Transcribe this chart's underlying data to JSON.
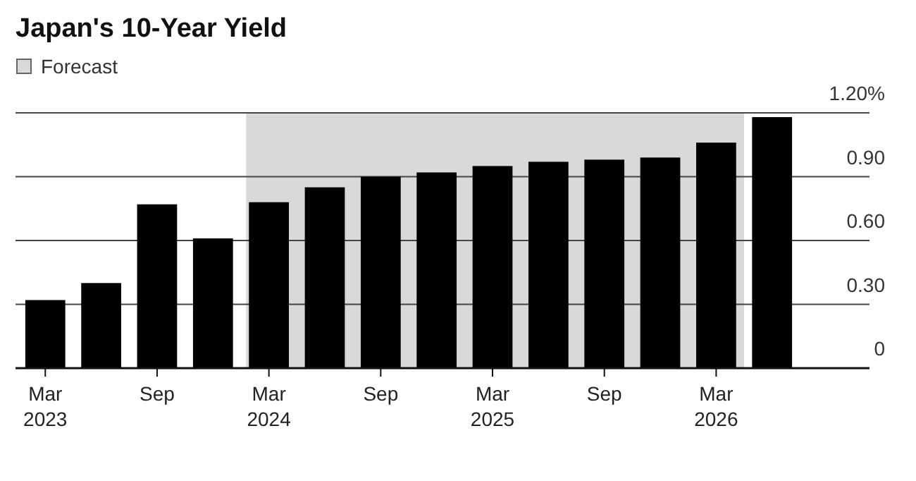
{
  "chart_data": {
    "type": "bar",
    "title": "Japan's 10-Year Yield",
    "categories": [
      "Mar\n2023",
      null,
      "Sep",
      null,
      "Mar\n2024",
      null,
      "Sep",
      null,
      "Mar\n2025",
      null,
      "Sep",
      null,
      "Mar\n2026",
      null
    ],
    "values": [
      0.32,
      0.4,
      0.77,
      0.61,
      0.78,
      0.85,
      0.9,
      0.92,
      0.95,
      0.97,
      0.98,
      0.99,
      1.06,
      1.18
    ],
    "color": "#000000",
    "ylim": [
      0,
      1.2
    ],
    "yticks": [
      0,
      {
        "value": 0.3,
        "label": "0.30"
      },
      {
        "value": 0.6,
        "label": "0.60"
      },
      {
        "value": 0.9,
        "label": "0.90"
      },
      {
        "value": 1.2,
        "label": "1.20%"
      }
    ],
    "grid": "y",
    "legend": "top left",
    "bands": [
      {
        "axis": "x",
        "from": "Mar\n2024",
        "to": "Mar\n2026",
        "label": "Forecast",
        "color": "#d9d9d9"
      }
    ]
  }
}
